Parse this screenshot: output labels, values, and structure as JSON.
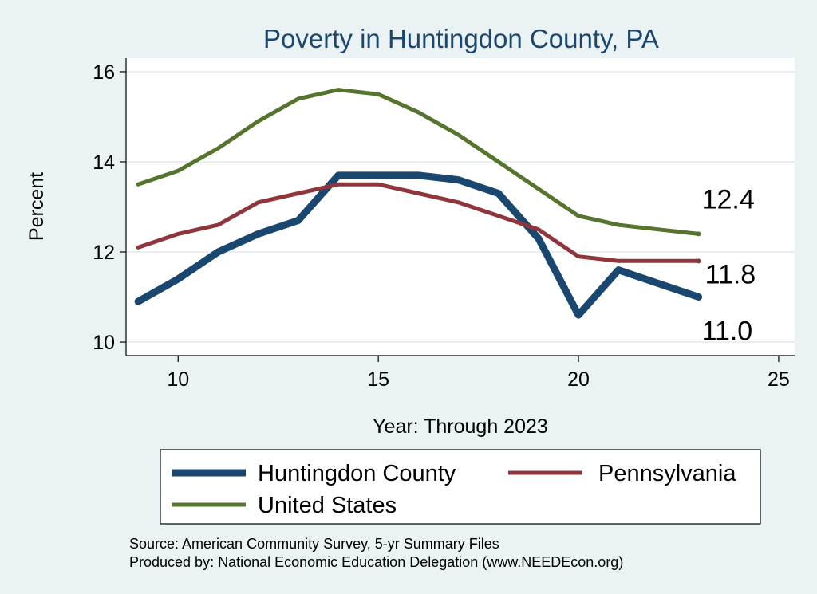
{
  "chart_data": {
    "type": "line",
    "title": "Poverty in Huntingdon County, PA",
    "xlabel": "Year: Through 2023",
    "ylabel": "Percent",
    "xlim": [
      8.7,
      25.4
    ],
    "ylim": [
      9.7,
      16.3
    ],
    "xticks": [
      10,
      15,
      20,
      25
    ],
    "yticks": [
      10,
      12,
      14,
      16
    ],
    "grid": true,
    "series": [
      {
        "name": "Huntingdon County",
        "color": "#1a476f",
        "x": [
          9,
          10,
          11,
          12,
          13,
          14,
          15,
          16,
          17,
          18,
          19,
          20,
          21,
          22,
          23
        ],
        "values": [
          10.9,
          11.4,
          12.0,
          12.4,
          12.7,
          13.7,
          13.7,
          13.7,
          13.6,
          13.3,
          12.3,
          10.6,
          11.6,
          11.3,
          11.0
        ],
        "end_label": "11.0"
      },
      {
        "name": "Pennsylvania",
        "color": "#90353b",
        "x": [
          9,
          10,
          11,
          12,
          13,
          14,
          15,
          16,
          17,
          18,
          19,
          20,
          21,
          22,
          23
        ],
        "values": [
          12.1,
          12.4,
          12.6,
          13.1,
          13.3,
          13.5,
          13.5,
          13.3,
          13.1,
          12.8,
          12.5,
          11.9,
          11.8,
          11.8,
          11.8
        ],
        "end_label": "11.8"
      },
      {
        "name": "United States",
        "color": "#55752f",
        "x": [
          9,
          10,
          11,
          12,
          13,
          14,
          15,
          16,
          17,
          18,
          19,
          20,
          21,
          22,
          23
        ],
        "values": [
          13.5,
          13.8,
          14.3,
          14.9,
          15.4,
          15.6,
          15.5,
          15.1,
          14.6,
          14.0,
          13.4,
          12.8,
          12.6,
          12.5,
          12.4
        ],
        "end_label": "12.4"
      }
    ],
    "legend": {
      "position": "bottom",
      "entries": [
        "Huntingdon County",
        "Pennsylvania",
        "United States"
      ]
    },
    "notes": [
      "Source: American Community Survey, 5-yr Summary Files",
      "Produced by: National Economic Education Delegation (www.NEEDEcon.org)"
    ]
  }
}
